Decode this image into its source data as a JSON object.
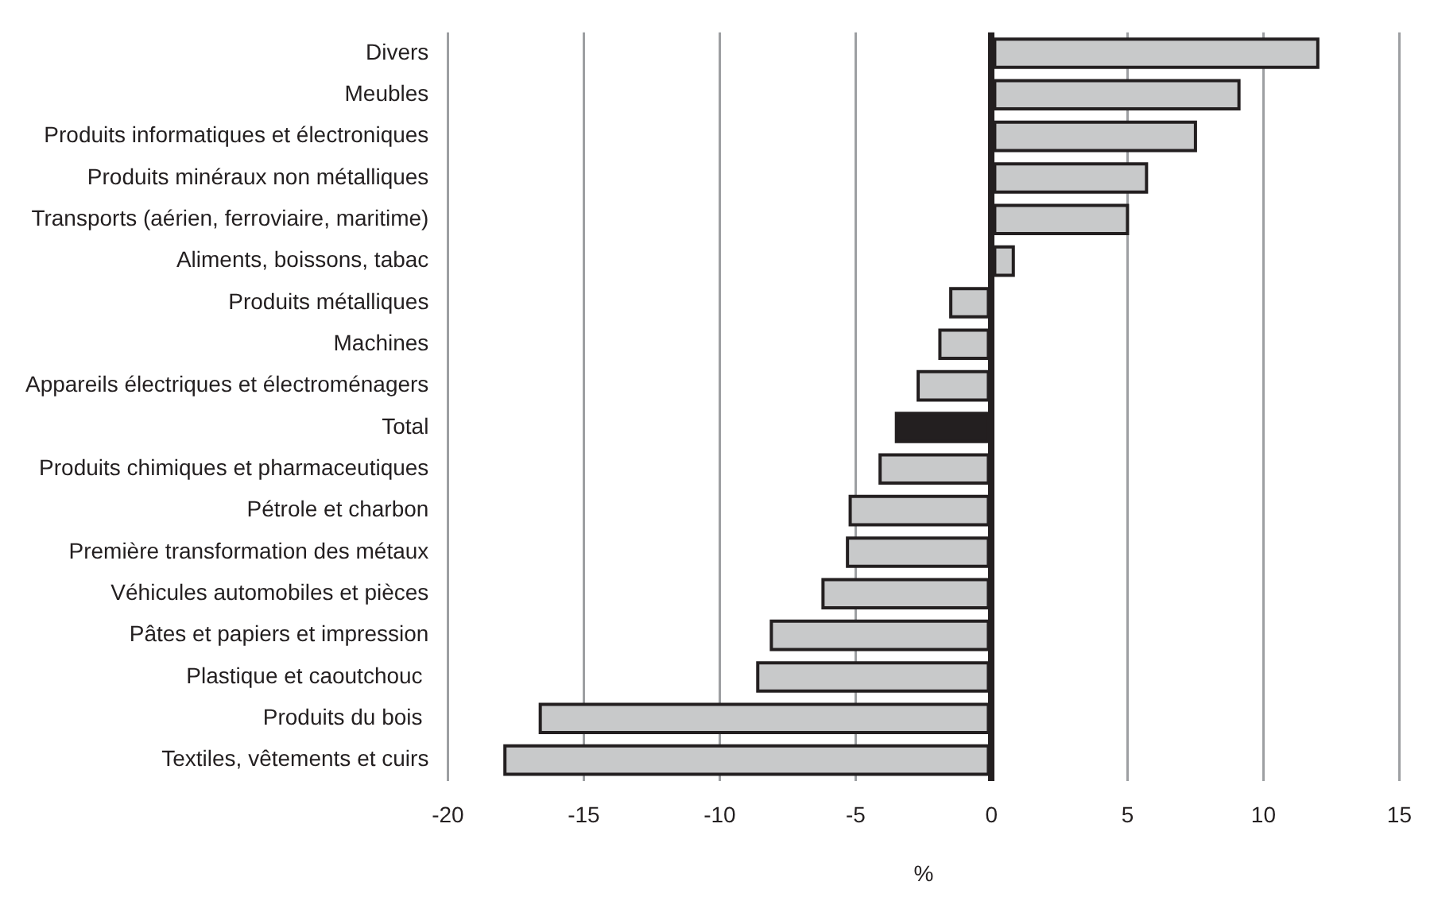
{
  "chart_data": {
    "type": "bar",
    "orientation": "horizontal",
    "xlabel": "%",
    "categories": [
      "Divers",
      "Meubles",
      "Produits informatiques et électroniques",
      "Produits minéraux non métalliques",
      "Transports (aérien, ferroviaire, maritime)",
      "Aliments, boissons, tabac",
      "Produits métalliques",
      "Machines",
      "Appareils électriques et électroménagers",
      "Total",
      "Produits chimiques et pharmaceutiques",
      "Pétrole et charbon",
      "Première transformation des métaux",
      "Véhicules automobiles et pièces",
      "Pâtes et papiers et impression",
      "Plastique et caoutchouc ",
      "Produits du bois ",
      "Textiles, vêtements et cuirs"
    ],
    "values": [
      12.0,
      9.1,
      7.5,
      5.7,
      5.0,
      0.8,
      -1.5,
      -1.9,
      -2.7,
      -3.5,
      -4.1,
      -5.2,
      -5.3,
      -6.2,
      -8.1,
      -8.6,
      -16.6,
      -17.9
    ],
    "colors": [
      "#c8c9ca",
      "#c8c9ca",
      "#c8c9ca",
      "#c8c9ca",
      "#c8c9ca",
      "#c8c9ca",
      "#c8c9ca",
      "#c8c9ca",
      "#c8c9ca",
      "#231f20",
      "#c8c9ca",
      "#c8c9ca",
      "#c8c9ca",
      "#c8c9ca",
      "#c8c9ca",
      "#c8c9ca",
      "#c8c9ca",
      "#c8c9ca"
    ],
    "xlim": [
      -20,
      15
    ],
    "xticks": [
      -20,
      -15,
      -10,
      -5,
      0,
      5,
      10,
      15
    ],
    "grid": "x",
    "legend": false
  }
}
